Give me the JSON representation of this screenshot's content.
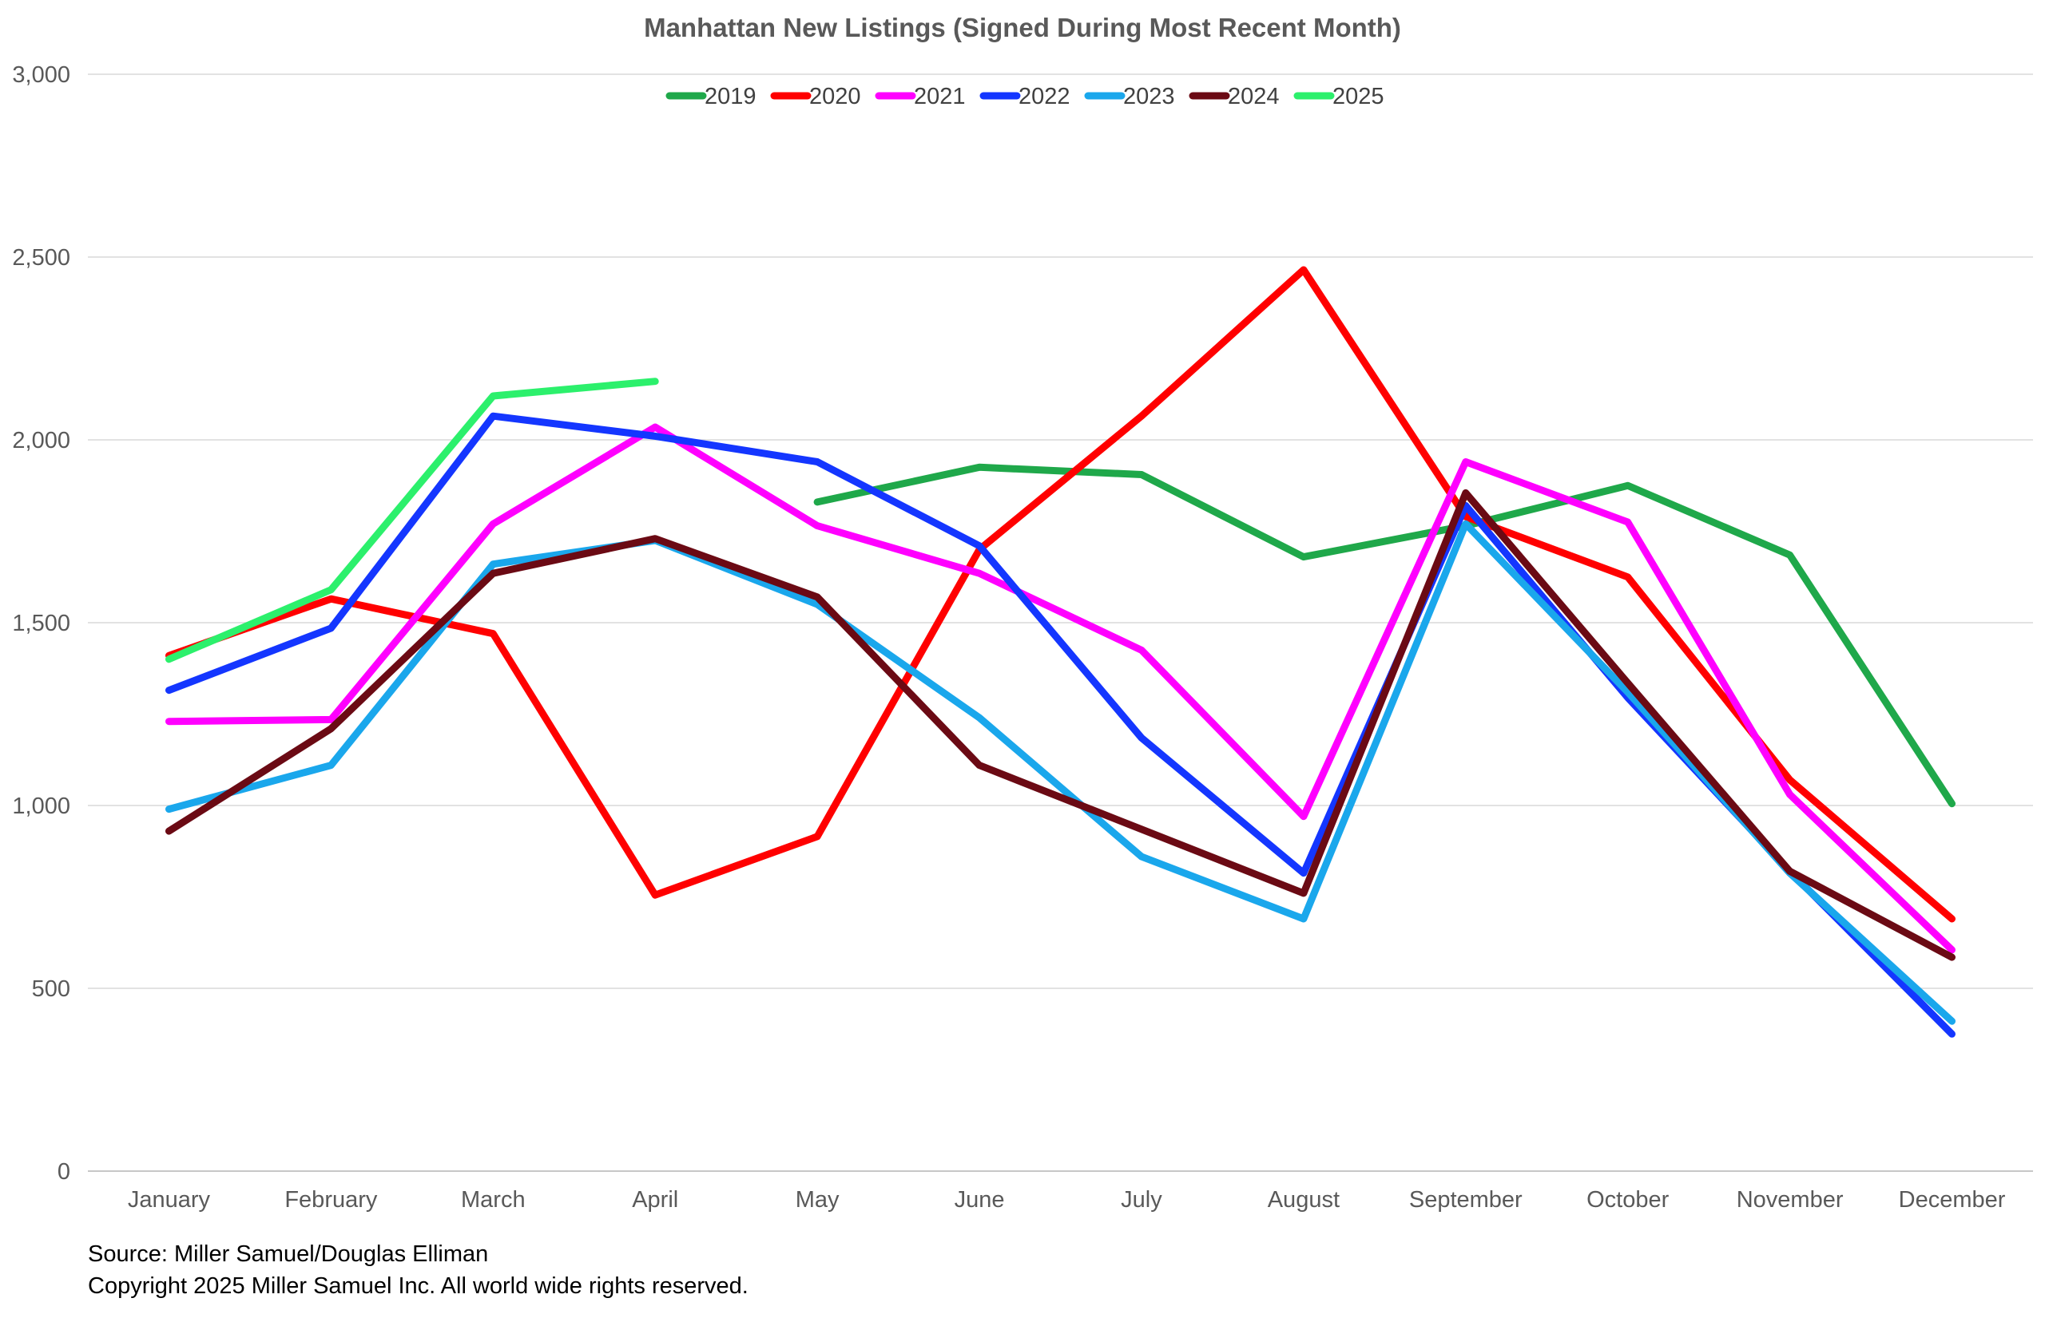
{
  "chart_data": {
    "type": "line",
    "title": "Manhattan New Listings (Signed During Most Recent Month)",
    "xlabel": "",
    "ylabel": "",
    "categories": [
      "January",
      "February",
      "March",
      "April",
      "May",
      "June",
      "July",
      "August",
      "September",
      "October",
      "November",
      "December"
    ],
    "ylim": [
      0,
      3000
    ],
    "y_ticks": [
      "0",
      "500",
      "1,000",
      "1,500",
      "2,000",
      "2,500",
      "3,000"
    ],
    "y_tick_values": [
      0,
      500,
      1000,
      1500,
      2000,
      2500,
      3000
    ],
    "grid": true,
    "legend_position": "top",
    "series": [
      {
        "name": "2019",
        "color": "#1fa84a",
        "values": [
          null,
          null,
          null,
          null,
          1830,
          1925,
          1905,
          1680,
          1765,
          1875,
          1685,
          1005
        ]
      },
      {
        "name": "2020",
        "color": "#ff0000",
        "values": [
          1410,
          1565,
          1470,
          755,
          915,
          1700,
          2065,
          2465,
          1790,
          1625,
          1070,
          690
        ]
      },
      {
        "name": "2021",
        "color": "#ff00ff",
        "values": [
          1230,
          1235,
          1770,
          2035,
          1765,
          1635,
          1425,
          970,
          1940,
          1775,
          1030,
          605
        ]
      },
      {
        "name": "2022",
        "color": "#1436ff",
        "values": [
          1315,
          1485,
          2065,
          2010,
          1940,
          1710,
          1185,
          815,
          1820,
          1295,
          820,
          375
        ]
      },
      {
        "name": "2023",
        "color": "#1aa7ec",
        "values": [
          990,
          1110,
          1660,
          1725,
          1550,
          1240,
          860,
          690,
          1770,
          1310,
          815,
          410
        ]
      },
      {
        "name": "2024",
        "color": "#6b0a14",
        "values": [
          930,
          1210,
          1635,
          1730,
          1570,
          1110,
          935,
          760,
          1855,
          1335,
          820,
          585
        ]
      },
      {
        "name": "2025",
        "color": "#2cf06c",
        "values": [
          1400,
          1590,
          2120,
          2160,
          null,
          null,
          null,
          null,
          null,
          null,
          null,
          null
        ]
      }
    ]
  },
  "footer": {
    "source": "Source: Miller Samuel/Douglas Elliman",
    "copyright": "Copyright 2025 Miller Samuel Inc.  All world wide rights reserved."
  }
}
